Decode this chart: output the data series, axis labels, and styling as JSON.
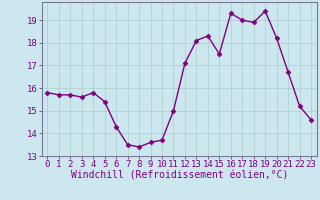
{
  "x": [
    0,
    1,
    2,
    3,
    4,
    5,
    6,
    7,
    8,
    9,
    10,
    11,
    12,
    13,
    14,
    15,
    16,
    17,
    18,
    19,
    20,
    21,
    22,
    23
  ],
  "y": [
    15.8,
    15.7,
    15.7,
    15.6,
    15.8,
    15.4,
    14.3,
    13.5,
    13.4,
    13.6,
    13.7,
    15.0,
    17.1,
    18.1,
    18.3,
    17.5,
    19.3,
    19.0,
    18.9,
    19.4,
    18.2,
    16.7,
    15.2,
    14.6
  ],
  "line_color": "#800080",
  "marker": "D",
  "marker_size": 2.5,
  "bg_color": "#cce8ee",
  "grid_color": "#aacccc",
  "xlabel": "Windchill (Refroidissement éolien,°C)",
  "ylabel": "",
  "title": "",
  "xlim": [
    -0.5,
    23.5
  ],
  "ylim": [
    13.0,
    19.8
  ],
  "yticks": [
    13,
    14,
    15,
    16,
    17,
    18,
    19
  ],
  "xticks": [
    0,
    1,
    2,
    3,
    4,
    5,
    6,
    7,
    8,
    9,
    10,
    11,
    12,
    13,
    14,
    15,
    16,
    17,
    18,
    19,
    20,
    21,
    22,
    23
  ],
  "tick_label_fontsize": 6.5,
  "xlabel_fontsize": 7.0,
  "spine_color": "#777799",
  "tick_color": "#800080",
  "linewidth": 1.0
}
